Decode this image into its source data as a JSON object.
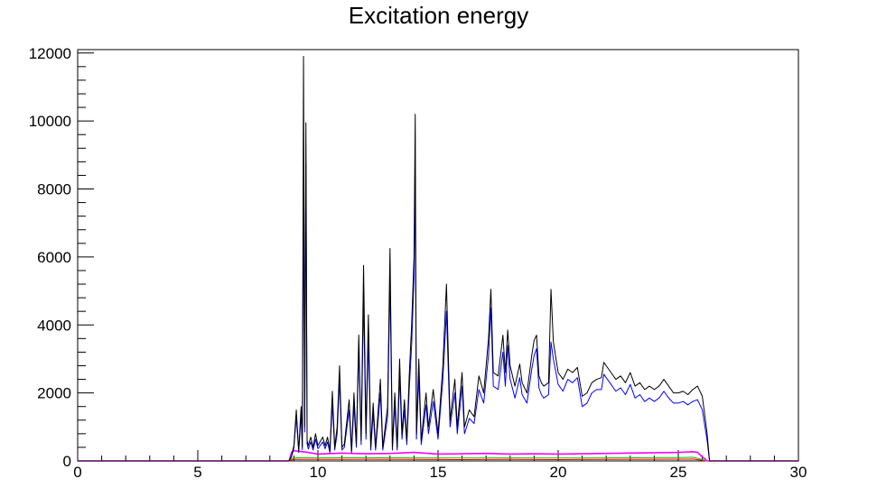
{
  "chart_data": {
    "type": "line",
    "title": "Excitation energy",
    "xlabel": "",
    "ylabel": "",
    "xlim": [
      0,
      30
    ],
    "ylim": [
      0,
      12100
    ],
    "x_ticks": [
      "0",
      "5",
      "10",
      "15",
      "20",
      "25",
      "30"
    ],
    "y_ticks": [
      "0",
      "2000",
      "4000",
      "6000",
      "8000",
      "10000",
      "12000"
    ],
    "grid": false,
    "legend": "none",
    "series": [
      {
        "color": "#000000",
        "points": [
          [
            0,
            0
          ],
          [
            8.8,
            0
          ],
          [
            8.9,
            150
          ],
          [
            9.0,
            450
          ],
          [
            9.1,
            1500
          ],
          [
            9.2,
            300
          ],
          [
            9.3,
            1600
          ],
          [
            9.35,
            400
          ],
          [
            9.4,
            11900
          ],
          [
            9.45,
            1000
          ],
          [
            9.5,
            9950
          ],
          [
            9.55,
            600
          ],
          [
            9.6,
            450
          ],
          [
            9.7,
            700
          ],
          [
            9.8,
            400
          ],
          [
            9.9,
            800
          ],
          [
            10.0,
            450
          ],
          [
            10.2,
            700
          ],
          [
            10.3,
            450
          ],
          [
            10.4,
            700
          ],
          [
            10.5,
            300
          ],
          [
            10.6,
            2050
          ],
          [
            10.7,
            400
          ],
          [
            10.8,
            1000
          ],
          [
            10.9,
            2800
          ],
          [
            11.0,
            400
          ],
          [
            11.1,
            500
          ],
          [
            11.3,
            1800
          ],
          [
            11.4,
            300
          ],
          [
            11.5,
            2000
          ],
          [
            11.6,
            500
          ],
          [
            11.7,
            3700
          ],
          [
            11.8,
            600
          ],
          [
            11.9,
            5750
          ],
          [
            12.0,
            800
          ],
          [
            12.1,
            4300
          ],
          [
            12.2,
            400
          ],
          [
            12.3,
            1700
          ],
          [
            12.4,
            400
          ],
          [
            12.6,
            2400
          ],
          [
            12.7,
            400
          ],
          [
            12.9,
            1600
          ],
          [
            13.0,
            6250
          ],
          [
            13.1,
            400
          ],
          [
            13.2,
            2000
          ],
          [
            13.3,
            400
          ],
          [
            13.4,
            3000
          ],
          [
            13.5,
            800
          ],
          [
            13.6,
            1800
          ],
          [
            13.7,
            600
          ],
          [
            13.8,
            2500
          ],
          [
            13.9,
            4000
          ],
          [
            14.0,
            6000
          ],
          [
            14.05,
            10200
          ],
          [
            14.1,
            800
          ],
          [
            14.2,
            3000
          ],
          [
            14.3,
            600
          ],
          [
            14.5,
            2000
          ],
          [
            14.6,
            1000
          ],
          [
            14.8,
            2100
          ],
          [
            15.0,
            800
          ],
          [
            15.2,
            2800
          ],
          [
            15.35,
            5200
          ],
          [
            15.5,
            1200
          ],
          [
            15.7,
            2400
          ],
          [
            15.8,
            1000
          ],
          [
            16.0,
            2600
          ],
          [
            16.1,
            1000
          ],
          [
            16.3,
            1500
          ],
          [
            16.5,
            1300
          ],
          [
            16.7,
            2500
          ],
          [
            16.9,
            2000
          ],
          [
            17.1,
            3600
          ],
          [
            17.2,
            5050
          ],
          [
            17.3,
            2600
          ],
          [
            17.5,
            2500
          ],
          [
            17.7,
            3700
          ],
          [
            17.8,
            2600
          ],
          [
            17.9,
            3850
          ],
          [
            18.0,
            2800
          ],
          [
            18.2,
            2200
          ],
          [
            18.4,
            2850
          ],
          [
            18.5,
            2300
          ],
          [
            18.7,
            2000
          ],
          [
            18.9,
            3100
          ],
          [
            19.0,
            3550
          ],
          [
            19.1,
            3700
          ],
          [
            19.2,
            2500
          ],
          [
            19.3,
            2300
          ],
          [
            19.4,
            2200
          ],
          [
            19.6,
            2300
          ],
          [
            19.7,
            5050
          ],
          [
            19.8,
            3500
          ],
          [
            20.0,
            2600
          ],
          [
            20.2,
            2400
          ],
          [
            20.4,
            2700
          ],
          [
            20.6,
            2600
          ],
          [
            20.8,
            2750
          ],
          [
            21.0,
            1900
          ],
          [
            21.2,
            2000
          ],
          [
            21.4,
            2300
          ],
          [
            21.6,
            2400
          ],
          [
            21.8,
            2450
          ],
          [
            21.9,
            2900
          ],
          [
            22.0,
            2800
          ],
          [
            22.2,
            2600
          ],
          [
            22.4,
            2400
          ],
          [
            22.6,
            2500
          ],
          [
            22.8,
            2300
          ],
          [
            23.0,
            2600
          ],
          [
            23.2,
            2200
          ],
          [
            23.4,
            2300
          ],
          [
            23.6,
            2100
          ],
          [
            23.8,
            2200
          ],
          [
            24.0,
            2100
          ],
          [
            24.2,
            2200
          ],
          [
            24.4,
            2400
          ],
          [
            24.6,
            2200
          ],
          [
            24.8,
            2000
          ],
          [
            25.0,
            2000
          ],
          [
            25.2,
            2050
          ],
          [
            25.4,
            1950
          ],
          [
            25.6,
            2100
          ],
          [
            25.8,
            2200
          ],
          [
            26.0,
            1900
          ],
          [
            26.2,
            800
          ],
          [
            26.3,
            0
          ],
          [
            30,
            0
          ]
        ]
      },
      {
        "color": "#0000ff",
        "points": [
          [
            0,
            0
          ],
          [
            8.8,
            0
          ],
          [
            8.9,
            120
          ],
          [
            9.0,
            380
          ],
          [
            9.1,
            1300
          ],
          [
            9.2,
            250
          ],
          [
            9.3,
            1400
          ],
          [
            9.35,
            330
          ],
          [
            9.4,
            8700
          ],
          [
            9.45,
            850
          ],
          [
            9.5,
            8750
          ],
          [
            9.55,
            500
          ],
          [
            9.6,
            350
          ],
          [
            9.7,
            560
          ],
          [
            9.8,
            320
          ],
          [
            9.9,
            640
          ],
          [
            10.0,
            360
          ],
          [
            10.2,
            560
          ],
          [
            10.3,
            360
          ],
          [
            10.4,
            560
          ],
          [
            10.5,
            240
          ],
          [
            10.6,
            1700
          ],
          [
            10.7,
            320
          ],
          [
            10.8,
            800
          ],
          [
            10.9,
            2400
          ],
          [
            11.0,
            320
          ],
          [
            11.1,
            400
          ],
          [
            11.3,
            1500
          ],
          [
            11.4,
            240
          ],
          [
            11.5,
            1650
          ],
          [
            11.6,
            400
          ],
          [
            11.7,
            3300
          ],
          [
            11.8,
            480
          ],
          [
            11.9,
            4800
          ],
          [
            12.0,
            640
          ],
          [
            12.1,
            3600
          ],
          [
            12.2,
            320
          ],
          [
            12.3,
            1400
          ],
          [
            12.4,
            320
          ],
          [
            12.6,
            2000
          ],
          [
            12.7,
            320
          ],
          [
            12.9,
            1300
          ],
          [
            13.0,
            5300
          ],
          [
            13.1,
            320
          ],
          [
            13.2,
            1650
          ],
          [
            13.3,
            320
          ],
          [
            13.4,
            2500
          ],
          [
            13.5,
            640
          ],
          [
            13.6,
            1500
          ],
          [
            13.7,
            480
          ],
          [
            13.8,
            2100
          ],
          [
            13.9,
            3400
          ],
          [
            14.0,
            5400
          ],
          [
            14.05,
            8400
          ],
          [
            14.1,
            640
          ],
          [
            14.2,
            2500
          ],
          [
            14.3,
            480
          ],
          [
            14.5,
            1650
          ],
          [
            14.6,
            800
          ],
          [
            14.8,
            1750
          ],
          [
            15.0,
            640
          ],
          [
            15.2,
            2400
          ],
          [
            15.35,
            4400
          ],
          [
            15.5,
            1000
          ],
          [
            15.7,
            2000
          ],
          [
            15.8,
            800
          ],
          [
            16.0,
            2200
          ],
          [
            16.1,
            800
          ],
          [
            16.3,
            1250
          ],
          [
            16.5,
            1100
          ],
          [
            16.7,
            2100
          ],
          [
            16.9,
            1700
          ],
          [
            17.1,
            3100
          ],
          [
            17.2,
            4500
          ],
          [
            17.3,
            2200
          ],
          [
            17.5,
            2100
          ],
          [
            17.7,
            3200
          ],
          [
            17.8,
            2200
          ],
          [
            17.9,
            3400
          ],
          [
            18.0,
            2400
          ],
          [
            18.2,
            1850
          ],
          [
            18.4,
            2450
          ],
          [
            18.5,
            1950
          ],
          [
            18.7,
            1700
          ],
          [
            18.9,
            2700
          ],
          [
            19.0,
            3100
          ],
          [
            19.1,
            3300
          ],
          [
            19.2,
            2150
          ],
          [
            19.3,
            1950
          ],
          [
            19.4,
            1850
          ],
          [
            19.6,
            1950
          ],
          [
            19.7,
            3500
          ],
          [
            19.8,
            3000
          ],
          [
            20.0,
            2250
          ],
          [
            20.2,
            2050
          ],
          [
            20.4,
            2400
          ],
          [
            20.6,
            2300
          ],
          [
            20.8,
            2450
          ],
          [
            21.0,
            1600
          ],
          [
            21.2,
            1700
          ],
          [
            21.4,
            2000
          ],
          [
            21.6,
            2100
          ],
          [
            21.8,
            2100
          ],
          [
            21.9,
            2550
          ],
          [
            22.0,
            2450
          ],
          [
            22.2,
            2250
          ],
          [
            22.4,
            2050
          ],
          [
            22.6,
            2150
          ],
          [
            22.8,
            1950
          ],
          [
            23.0,
            2250
          ],
          [
            23.2,
            1850
          ],
          [
            23.4,
            1950
          ],
          [
            23.6,
            1750
          ],
          [
            23.8,
            1850
          ],
          [
            24.0,
            1750
          ],
          [
            24.2,
            1850
          ],
          [
            24.4,
            2050
          ],
          [
            24.6,
            1850
          ],
          [
            24.8,
            1700
          ],
          [
            25.0,
            1700
          ],
          [
            25.2,
            1750
          ],
          [
            25.4,
            1650
          ],
          [
            25.6,
            1750
          ],
          [
            25.8,
            1800
          ],
          [
            26.0,
            1500
          ],
          [
            26.2,
            600
          ],
          [
            26.3,
            0
          ],
          [
            30,
            0
          ]
        ]
      },
      {
        "color": "#ff00ff",
        "points": [
          [
            0,
            0
          ],
          [
            8.8,
            0
          ],
          [
            8.9,
            250
          ],
          [
            9.0,
            300
          ],
          [
            9.5,
            260
          ],
          [
            10.0,
            200
          ],
          [
            11.0,
            230
          ],
          [
            12.0,
            210
          ],
          [
            13.0,
            220
          ],
          [
            14.0,
            250
          ],
          [
            15.0,
            200
          ],
          [
            16.0,
            210
          ],
          [
            17.0,
            220
          ],
          [
            18.0,
            200
          ],
          [
            19.0,
            210
          ],
          [
            20.0,
            200
          ],
          [
            21.0,
            210
          ],
          [
            22.0,
            220
          ],
          [
            23.0,
            230
          ],
          [
            24.0,
            240
          ],
          [
            25.0,
            250
          ],
          [
            25.6,
            270
          ],
          [
            25.8,
            250
          ],
          [
            26.0,
            120
          ],
          [
            26.2,
            0
          ],
          [
            30,
            0
          ]
        ]
      },
      {
        "color": "#00cc00",
        "points": [
          [
            0,
            0
          ],
          [
            8.8,
            0
          ],
          [
            8.9,
            60
          ],
          [
            9.0,
            100
          ],
          [
            10.0,
            90
          ],
          [
            12.0,
            95
          ],
          [
            14.0,
            90
          ],
          [
            16.0,
            85
          ],
          [
            18.0,
            90
          ],
          [
            20.0,
            85
          ],
          [
            22.0,
            90
          ],
          [
            24.0,
            95
          ],
          [
            25.0,
            100
          ],
          [
            25.6,
            110
          ],
          [
            26.0,
            40
          ],
          [
            26.2,
            0
          ],
          [
            30,
            0
          ]
        ]
      },
      {
        "color": "#ff0000",
        "points": [
          [
            0,
            0
          ],
          [
            8.8,
            0
          ],
          [
            8.9,
            30
          ],
          [
            9.0,
            50
          ],
          [
            10.0,
            45
          ],
          [
            12.0,
            50
          ],
          [
            14.0,
            45
          ],
          [
            16.0,
            40
          ],
          [
            18.0,
            45
          ],
          [
            20.0,
            40
          ],
          [
            22.0,
            45
          ],
          [
            24.0,
            50
          ],
          [
            25.6,
            55
          ],
          [
            26.0,
            20
          ],
          [
            26.2,
            0
          ],
          [
            30,
            0
          ]
        ]
      }
    ]
  }
}
